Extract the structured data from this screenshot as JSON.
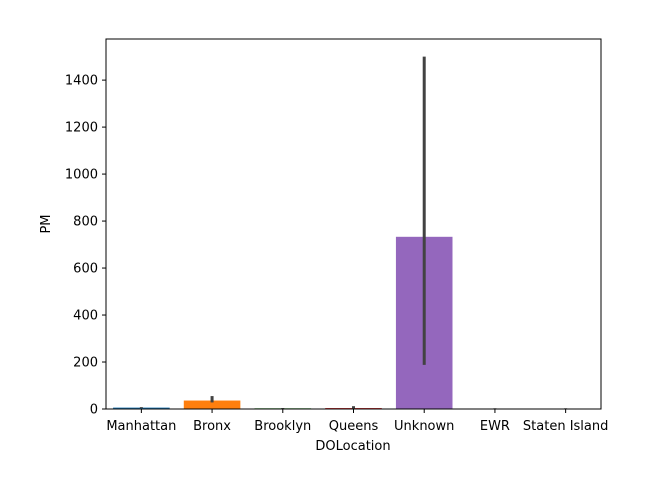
{
  "chart_data": {
    "type": "bar",
    "title": "",
    "xlabel": "DOLocation",
    "ylabel": "PM",
    "categories": [
      "Manhattan",
      "Bronx",
      "Brooklyn",
      "Queens",
      "Unknown",
      "EWR",
      "Staten Island"
    ],
    "values": [
      6,
      36,
      3,
      4,
      733,
      2,
      2
    ],
    "error_bars": [
      [
        4,
        8
      ],
      [
        28,
        55
      ],
      [
        2,
        4
      ],
      [
        2,
        12
      ],
      [
        188,
        1500
      ],
      [
        1,
        3
      ],
      [
        1,
        3
      ]
    ],
    "colors": [
      "#1f77b4",
      "#ff7f0e",
      "#2ca02c",
      "#d62728",
      "#9467bd",
      "#8c564b",
      "#e377c2"
    ],
    "error_color": "#424242",
    "yticks": [
      0,
      200,
      400,
      600,
      800,
      1000,
      1200,
      1400
    ],
    "ylim": [
      0,
      1575
    ],
    "grid": false
  }
}
